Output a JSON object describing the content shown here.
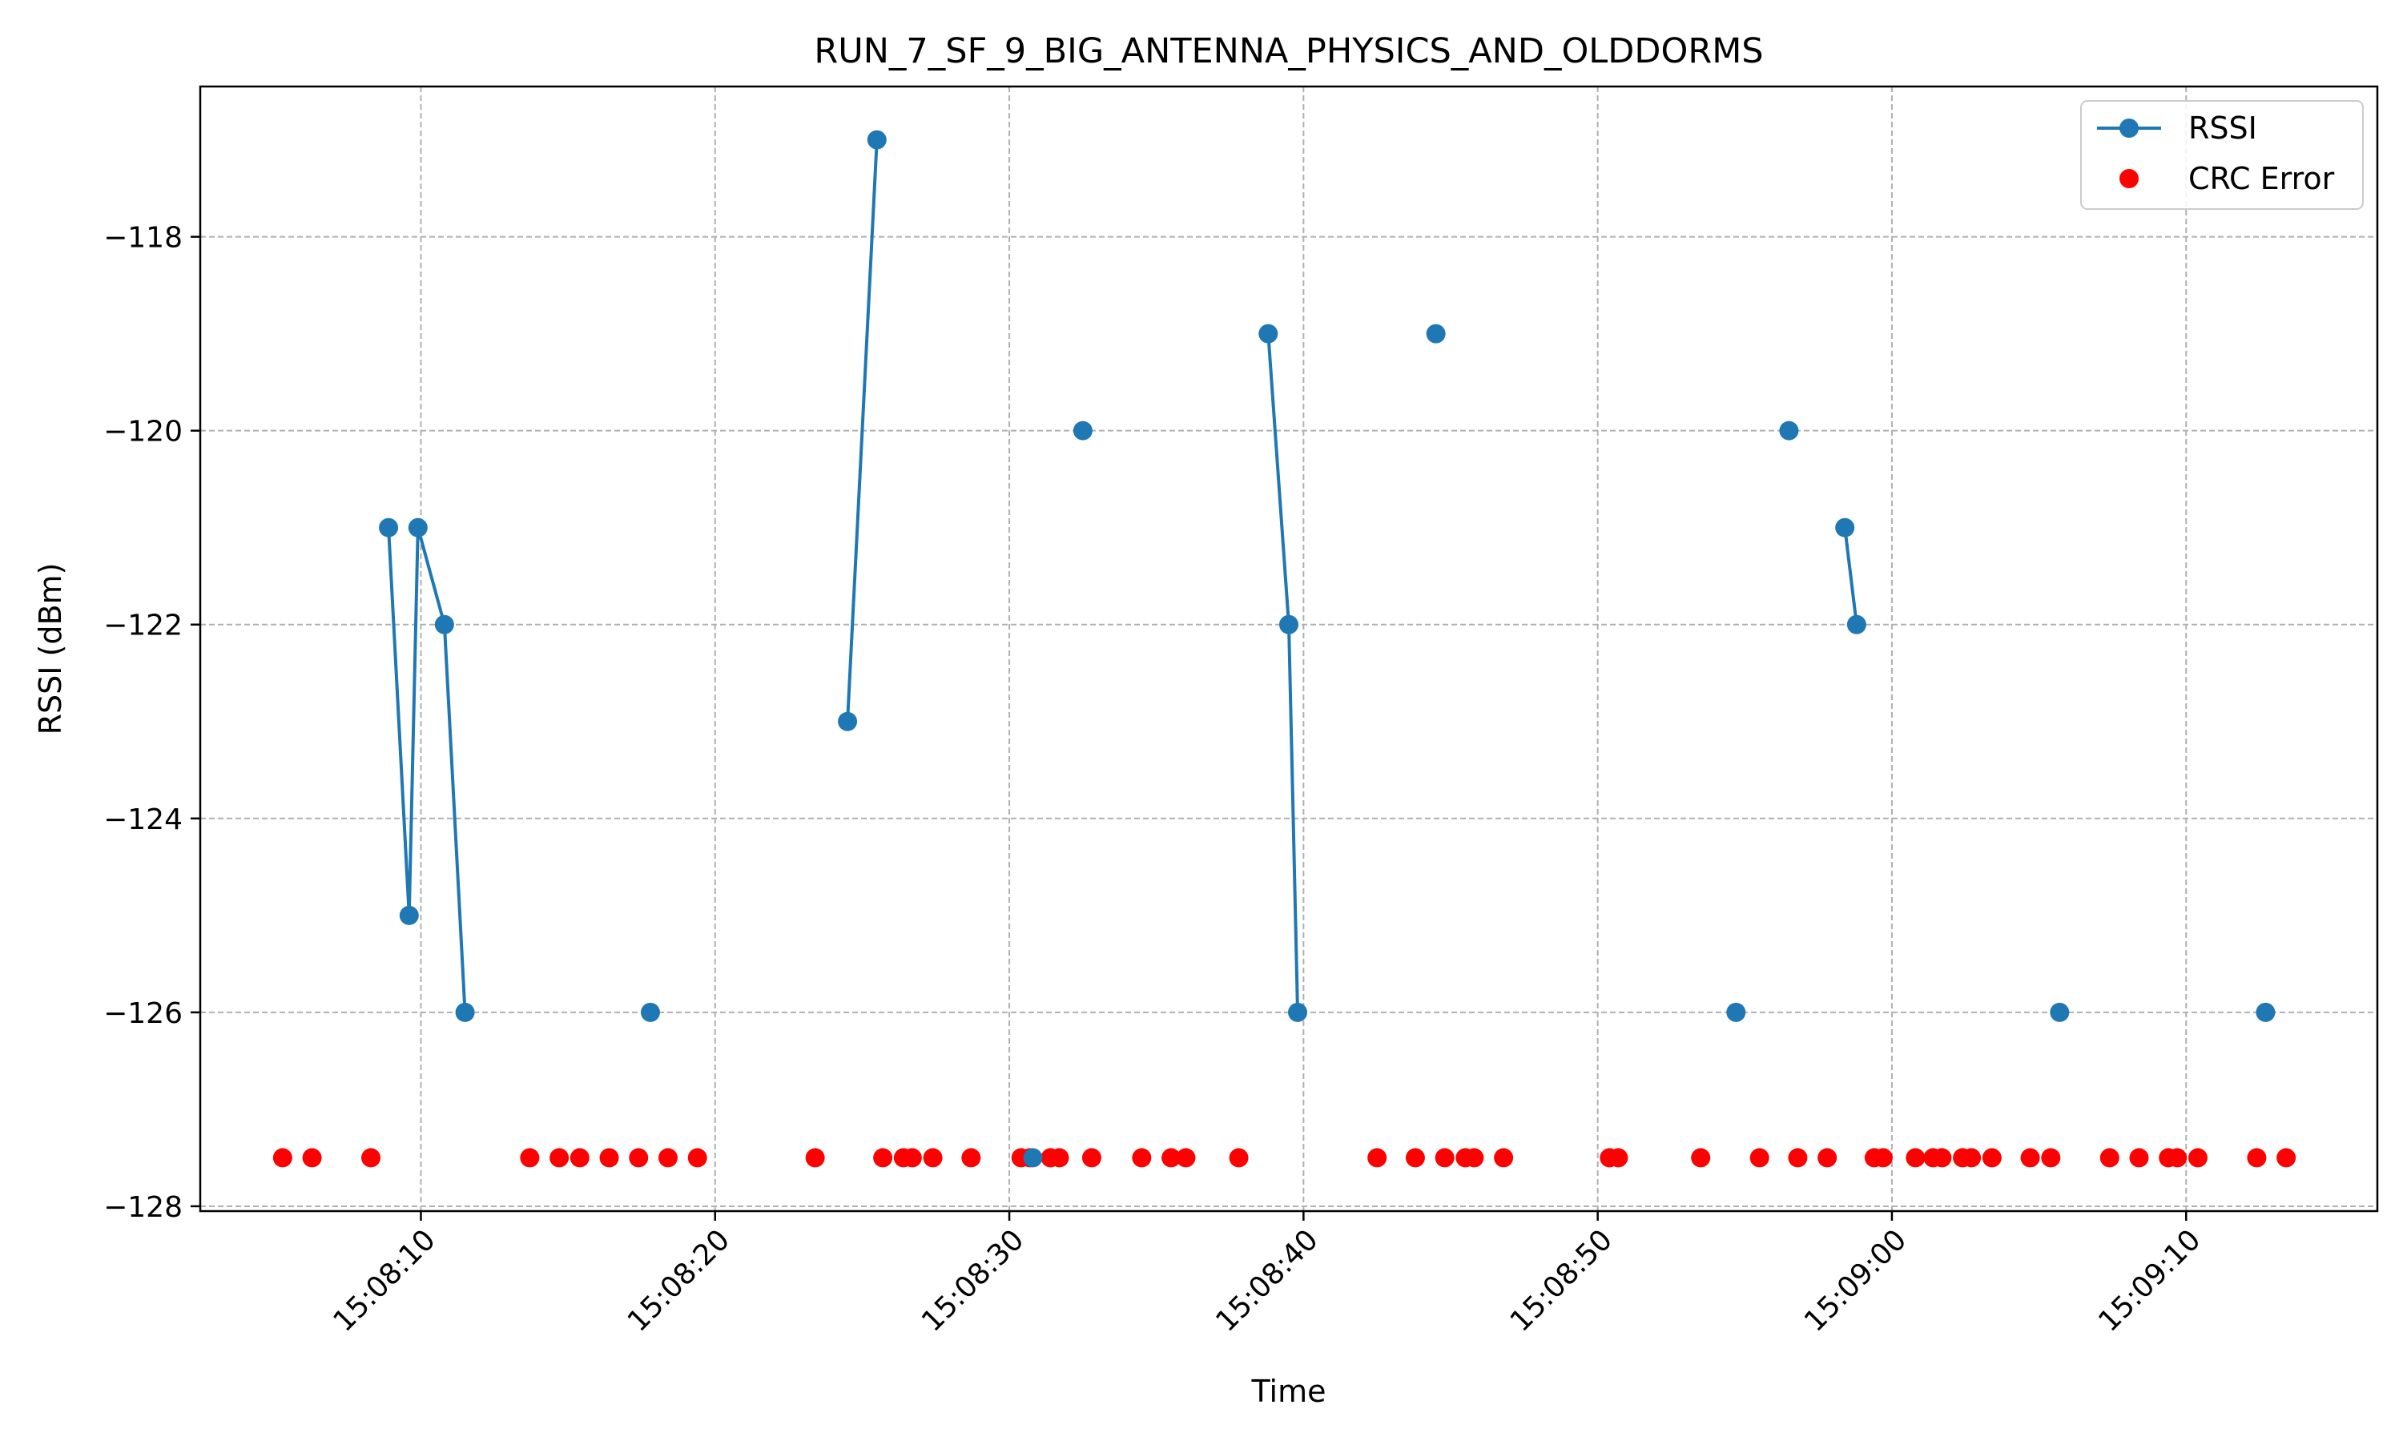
{
  "chart_data": {
    "type": "scatter",
    "title": "RUN_7_SF_9_BIG_ANTENNA_PHYSICS_AND_OLDDORMS",
    "xlabel": "Time",
    "ylabel": "RSSI (dBm)",
    "x_axis": "time",
    "xlim": [
      "15:08:02.5",
      "15:09:16.5"
    ],
    "ylim": [
      -128.05,
      -116.45
    ],
    "xticks": [
      "15:08:10",
      "15:08:20",
      "15:08:30",
      "15:08:40",
      "15:08:50",
      "15:09:00",
      "15:09:10"
    ],
    "yticks": [
      -128,
      -126,
      -124,
      -122,
      -120,
      -118
    ],
    "grid": true,
    "legend_position": "top-right",
    "legend": [
      {
        "label": "RSSI",
        "marker": "line+circle",
        "color": "#1f77b4"
      },
      {
        "label": "CRC Error",
        "marker": "circle",
        "color": "#ff0000"
      }
    ],
    "series": [
      {
        "name": "RSSI",
        "color": "#1f77b4",
        "style": "line+markers",
        "segments": [
          [
            [
              "15:08:08.9",
              -121
            ],
            [
              "15:08:09.6",
              -125
            ],
            [
              "15:08:09.9",
              -121
            ],
            [
              "15:08:10.8",
              -122
            ],
            [
              "15:08:11.5",
              -126
            ]
          ],
          [
            [
              "15:08:17.8",
              -126
            ]
          ],
          [
            [
              "15:08:24.5",
              -123
            ],
            [
              "15:08:25.5",
              -117
            ]
          ],
          [
            [
              "15:08:30.8",
              -127.5
            ]
          ],
          [
            [
              "15:08:32.5",
              -120
            ]
          ],
          [
            [
              "15:08:38.8",
              -119
            ],
            [
              "15:08:39.5",
              -122
            ],
            [
              "15:08:39.8",
              -126
            ]
          ],
          [
            [
              "15:08:44.5",
              -119
            ]
          ],
          [
            [
              "15:08:54.7",
              -126
            ]
          ],
          [
            [
              "15:08:56.5",
              -120
            ]
          ],
          [
            [
              "15:08:58.4",
              -121
            ],
            [
              "15:08:58.8",
              -122
            ]
          ],
          [
            [
              "15:09:05.7",
              -126
            ]
          ],
          [
            [
              "15:09:12.7",
              -126
            ]
          ]
        ]
      },
      {
        "name": "CRC Error",
        "color": "#ff0000",
        "style": "markers",
        "y": -127.5,
        "x": [
          "15:08:05.3",
          "15:08:06.3",
          "15:08:08.3",
          "15:08:13.7",
          "15:08:14.7",
          "15:08:15.4",
          "15:08:16.4",
          "15:08:17.4",
          "15:08:18.4",
          "15:08:19.4",
          "15:08:23.4",
          "15:08:25.7",
          "15:08:26.4",
          "15:08:26.7",
          "15:08:27.4",
          "15:08:28.7",
          "15:08:30.4",
          "15:08:30.7",
          "15:08:31.4",
          "15:08:31.7",
          "15:08:32.8",
          "15:08:34.5",
          "15:08:35.5",
          "15:08:36.0",
          "15:08:37.8",
          "15:08:42.5",
          "15:08:43.8",
          "15:08:44.8",
          "15:08:45.5",
          "15:08:45.8",
          "15:08:46.8",
          "15:08:50.4",
          "15:08:50.7",
          "15:08:53.5",
          "15:08:55.5",
          "15:08:56.8",
          "15:08:57.8",
          "15:08:59.4",
          "15:08:59.7",
          "15:09:00.8",
          "15:09:01.4",
          "15:09:01.7",
          "15:09:02.4",
          "15:09:02.7",
          "15:09:03.4",
          "15:09:04.7",
          "15:09:05.4",
          "15:09:07.4",
          "15:09:08.4",
          "15:09:09.4",
          "15:09:09.7",
          "15:09:10.4",
          "15:09:12.4",
          "15:09:13.4"
        ]
      }
    ]
  }
}
